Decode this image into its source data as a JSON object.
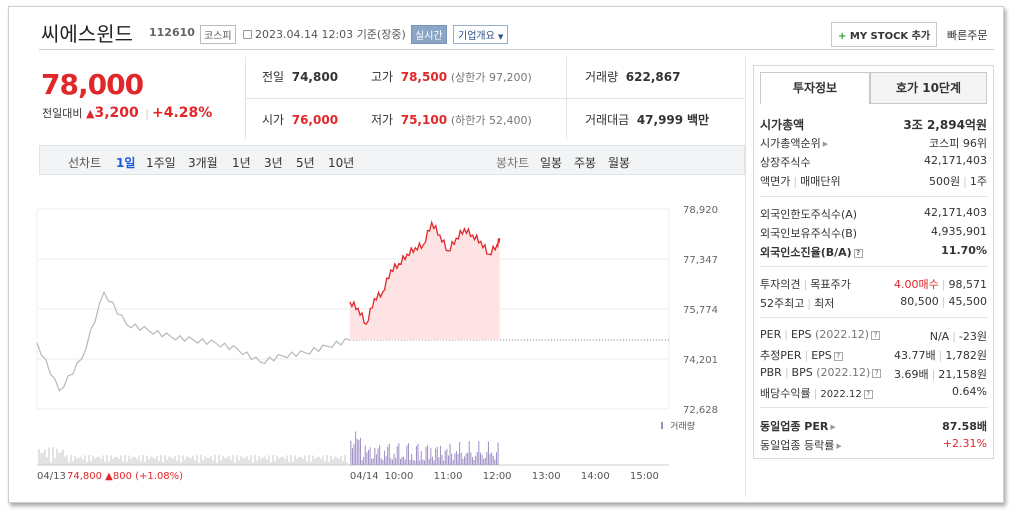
{
  "header": {
    "company_name": "씨에스윈드",
    "code": "112610",
    "market": "코스피",
    "datetime": "2023.04.14 12:03",
    "basis": "기준(장중)",
    "live_badge": "실시간",
    "company_info": "기업개요",
    "mystock_label": "MY STOCK 추가",
    "quick_order": "빠른주문"
  },
  "price": {
    "current": "78,000",
    "change_label": "전일대비",
    "change_amount": "3,200",
    "change_pct": "+4.28%"
  },
  "summary": {
    "prev_label": "전일",
    "prev_value": "74,800",
    "high_label": "고가",
    "high_value": "78,500",
    "upper_limit": "(상한가 97,200)",
    "volume_label": "거래량",
    "volume_value": "622,867",
    "open_label": "시가",
    "open_value": "76,000",
    "low_label": "저가",
    "low_value": "75,100",
    "lower_limit": "(하한가 52,400)",
    "amount_label": "거래대금",
    "amount_value": "47,999",
    "amount_unit": "백만"
  },
  "chart_tabs": {
    "line_label": "선차트",
    "line_periods": [
      "1일",
      "1주일",
      "3개월",
      "1년",
      "3년",
      "5년",
      "10년"
    ],
    "candle_label": "봉차트",
    "candle_periods": [
      "일봉",
      "주봉",
      "월봉"
    ],
    "selected": "1일"
  },
  "chart_data": {
    "type": "line",
    "title": "",
    "y_ticks": [
      "78,920",
      "77,347",
      "75,774",
      "74,201",
      "72,628"
    ],
    "ylim": [
      72628,
      78920
    ],
    "prev_close": 74800,
    "x_ticks": [
      "04/14",
      "10:00",
      "11:00",
      "12:00",
      "13:00",
      "14:00",
      "15:00"
    ],
    "series": [
      {
        "x": [
          "04/13 09:00",
          "04/13 09:20",
          "04/13 09:40",
          "04/13 10:00",
          "04/13 10:30",
          "04/13 11:00",
          "04/13 11:30",
          "04/13 12:00",
          "04/13 12:30",
          "04/13 13:00",
          "04/13 13:30",
          "04/13 14:00",
          "04/13 14:30",
          "04/13 15:00",
          "04/13 15:30"
        ],
        "values": [
          74700,
          73200,
          74200,
          76300,
          75300,
          75100,
          74900,
          74800,
          74700,
          74500,
          74100,
          74300,
          74400,
          74600,
          74800
        ]
      },
      {
        "x": [
          "09:00",
          "09:10",
          "09:20",
          "09:30",
          "09:40",
          "09:50",
          "10:00",
          "10:10",
          "10:20",
          "10:30",
          "10:40",
          "10:50",
          "11:00",
          "11:10",
          "11:20",
          "11:30",
          "11:40",
          "11:50",
          "12:00",
          "12:03"
        ],
        "values": [
          76000,
          75800,
          75300,
          76100,
          76300,
          77000,
          77200,
          77500,
          77700,
          77800,
          78500,
          78100,
          77600,
          78000,
          78300,
          78100,
          77900,
          77500,
          77800,
          78000
        ]
      }
    ],
    "volume_label": "거래량",
    "summary_date": "04/13",
    "summary_close": "74,800",
    "summary_change": "800",
    "summary_pct": "(+1.08%)"
  },
  "side_tabs": {
    "invest": "투자정보",
    "quote": "호가 10단계"
  },
  "invest": {
    "market_cap_label": "시가총액",
    "market_cap": "3조 2,894억원",
    "cap_rank_label": "시가총액순위",
    "cap_rank": "코스피 96위",
    "shares_label": "상장주식수",
    "shares": "42,171,403",
    "par_label": "액면가",
    "trade_unit_label": "매매단위",
    "par": "500원",
    "trade_unit": "1주",
    "foreign_limit_label": "외국인한도주식수(A)",
    "foreign_limit": "42,171,403",
    "foreign_hold_label": "외국인보유주식수(B)",
    "foreign_hold": "4,935,901",
    "foreign_ratio_label": "외국인소진율(B/A)",
    "foreign_ratio": "11.70%",
    "opinion_label": "투자의견",
    "target_label": "목표주가",
    "opinion": "4.00매수",
    "target": "98,571",
    "w52_high_label": "52주최고",
    "w52_low_label": "최저",
    "w52_high": "80,500",
    "w52_low": "45,500",
    "per_label": "PER",
    "eps_label": "EPS",
    "eps_period": "(2022.12)",
    "per": "N/A",
    "eps": "-23원",
    "est_per_label": "추정PER",
    "est_eps_label": "EPS",
    "est_per": "43.77배",
    "est_eps": "1,782원",
    "pbr_label": "PBR",
    "bps_label": "BPS",
    "bps_period": "(2022.12)",
    "pbr": "3.69배",
    "bps": "21,158원",
    "dividend_label": "배당수익률",
    "dividend_period": "2022.12",
    "dividend": "0.64%",
    "industry_per_label": "동일업종 PER",
    "industry_per": "87.58배",
    "industry_rate_label": "동일업종 등락률",
    "industry_rate": "+2.31%"
  },
  "colors": {
    "up": "#e0272a",
    "down": "#1a5ad7",
    "line_prev": "#b8b8b8",
    "area": "#fde3e3",
    "volume": "#9d8cc4"
  }
}
